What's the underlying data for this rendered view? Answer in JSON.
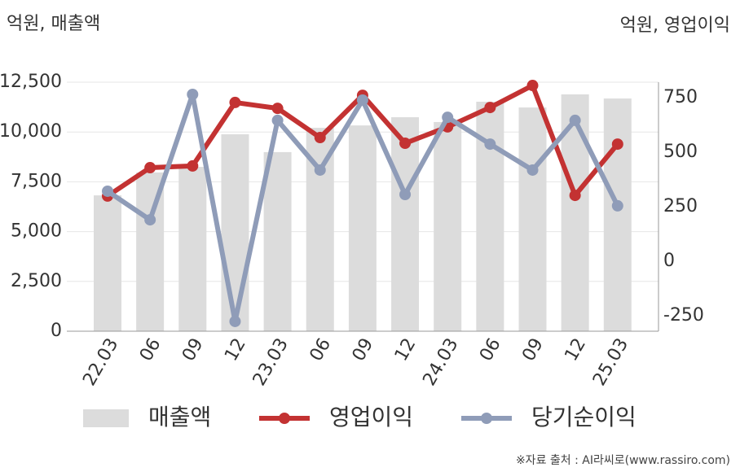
{
  "chart_data": {
    "type": "combo",
    "y_axis_title": "억원, 매출액",
    "y2_axis_title": "억원, 영업이익",
    "categories": [
      "22.03",
      "06",
      "09",
      "12",
      "23.03",
      "06",
      "09",
      "12",
      "24.03",
      "06",
      "09",
      "12",
      "25.03"
    ],
    "series": [
      {
        "name": "매출액",
        "type": "bar",
        "color": "#dcdcdc",
        "values": [
          6820,
          7970,
          8250,
          9885,
          8990,
          10210,
          10330,
          10740,
          10500,
          11520,
          11230,
          11890,
          11680
        ]
      },
      {
        "name": "영업이익",
        "type": "line",
        "axis": "y2",
        "color": "#c33232",
        "values": [
          299,
          429,
          437,
          728,
          701,
          567,
          761,
          541,
          616,
          705,
          806,
          302,
          537
        ]
      },
      {
        "name": "당기순이익",
        "type": "line",
        "axis": "y2",
        "color": "#8f9cb8",
        "values": [
          321,
          190,
          765,
          -276,
          646,
          418,
          739,
          306,
          660,
          537,
          418,
          646,
          254
        ]
      }
    ],
    "ylim": [
      0,
      12500
    ],
    "yticks": [
      0,
      {
        "value": 2500,
        "label": "2,500"
      },
      {
        "value": 5000,
        "label": "5,000"
      },
      {
        "value": 7500,
        "label": "7,500"
      },
      {
        "value": 10000,
        "label": "10,000"
      },
      {
        "value": 12500,
        "label": "12,500"
      }
    ],
    "y2lim": [
      -321,
      821
    ],
    "y2ticks": [
      -250,
      0,
      250,
      500,
      750
    ],
    "grid": true,
    "source": "※자료 출처 : AI라씨로(www.rassiro.com)"
  }
}
